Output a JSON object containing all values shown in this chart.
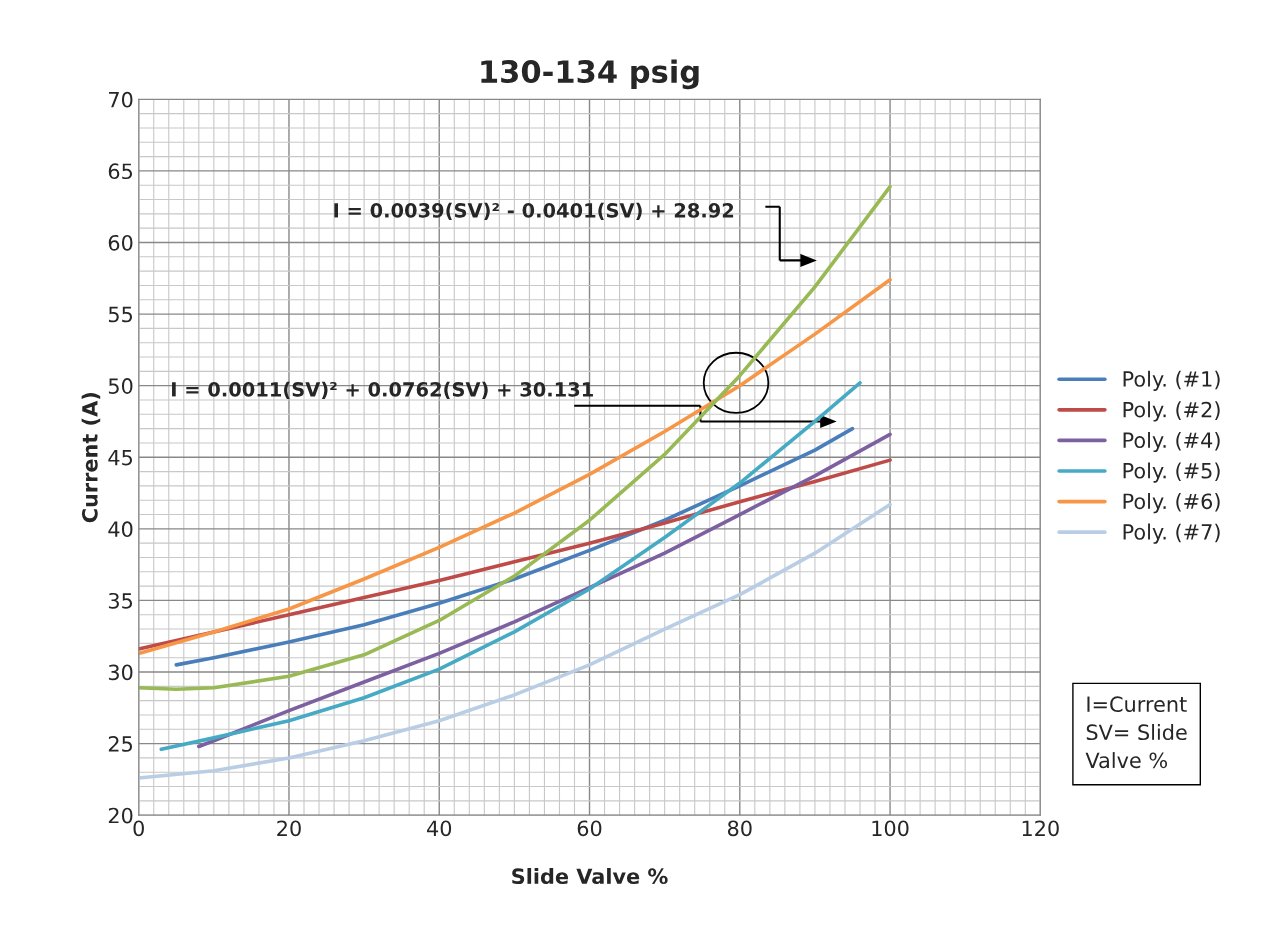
{
  "chart_data": {
    "type": "line",
    "title": "130-134 psig",
    "xlabel": "Slide Valve %",
    "ylabel": "Current (A)",
    "xlim": [
      0,
      120
    ],
    "ylim": [
      20,
      70
    ],
    "xticks": [
      0,
      20,
      40,
      60,
      80,
      100,
      120
    ],
    "yticks": [
      20,
      25,
      30,
      35,
      40,
      45,
      50,
      55,
      60,
      65,
      70
    ],
    "grid": true,
    "legend": "right",
    "marker": "none",
    "line_style": "solid",
    "series": [
      {
        "name": "Poly. (#1)",
        "color": "#4a7ebb",
        "x": [
          5,
          10,
          20,
          30,
          40,
          50,
          60,
          70,
          80,
          90,
          95
        ],
        "values": [
          30.5,
          31.0,
          32.1,
          33.3,
          34.8,
          36.5,
          38.5,
          40.6,
          43.0,
          45.5,
          47.0
        ]
      },
      {
        "name": "Poly. (#2)",
        "color": "#be4b48",
        "x": [
          0,
          10,
          20,
          30,
          40,
          50,
          60,
          70,
          80,
          90,
          100
        ],
        "values": [
          31.6,
          32.8,
          34.0,
          35.2,
          36.4,
          37.7,
          39.0,
          40.4,
          41.9,
          43.3,
          44.8
        ]
      },
      {
        "name": "Poly. (#4)",
        "color": "#7d60a0",
        "x": [
          8,
          10,
          20,
          30,
          40,
          50,
          60,
          70,
          80,
          90,
          100
        ],
        "values": [
          24.8,
          25.2,
          27.3,
          29.3,
          31.3,
          33.5,
          35.9,
          38.3,
          41.0,
          43.7,
          46.6
        ]
      },
      {
        "name": "Poly. (#5)",
        "color": "#46aac5",
        "x": [
          3,
          10,
          20,
          30,
          40,
          50,
          60,
          70,
          80,
          90,
          96
        ],
        "values": [
          24.6,
          25.4,
          26.6,
          28.2,
          30.2,
          32.8,
          35.8,
          39.4,
          43.2,
          47.5,
          50.2
        ]
      },
      {
        "name": "Poly. (#6)",
        "color": "#f79646",
        "x": [
          0,
          10,
          20,
          30,
          40,
          50,
          60,
          70,
          80,
          90,
          100
        ],
        "values": [
          31.3,
          32.8,
          34.4,
          36.5,
          38.7,
          41.1,
          43.8,
          46.8,
          50.0,
          53.6,
          57.4
        ]
      },
      {
        "name": "Poly. (#7)",
        "color": "#b9cde5",
        "x": [
          0,
          10,
          20,
          30,
          40,
          50,
          60,
          70,
          80,
          90,
          100
        ],
        "values": [
          22.6,
          23.1,
          24.0,
          25.2,
          26.6,
          28.4,
          30.5,
          33.0,
          35.4,
          38.3,
          41.7
        ]
      },
      {
        "color": "#98b954",
        "x": [
          0,
          5,
          10,
          20,
          30,
          40,
          50,
          60,
          70,
          80,
          90,
          100
        ],
        "values": [
          28.9,
          28.8,
          28.9,
          29.7,
          31.2,
          33.6,
          36.7,
          40.6,
          45.2,
          50.7,
          56.9,
          63.9
        ]
      }
    ],
    "annotations": [
      "I = 0.0039(SV)² - 0.0401(SV) + 28.92",
      "I = 0.0011(SV)² + 0.0762(SV) + 30.131",
      "I=Current\nSV= Slide\nValve %"
    ]
  }
}
